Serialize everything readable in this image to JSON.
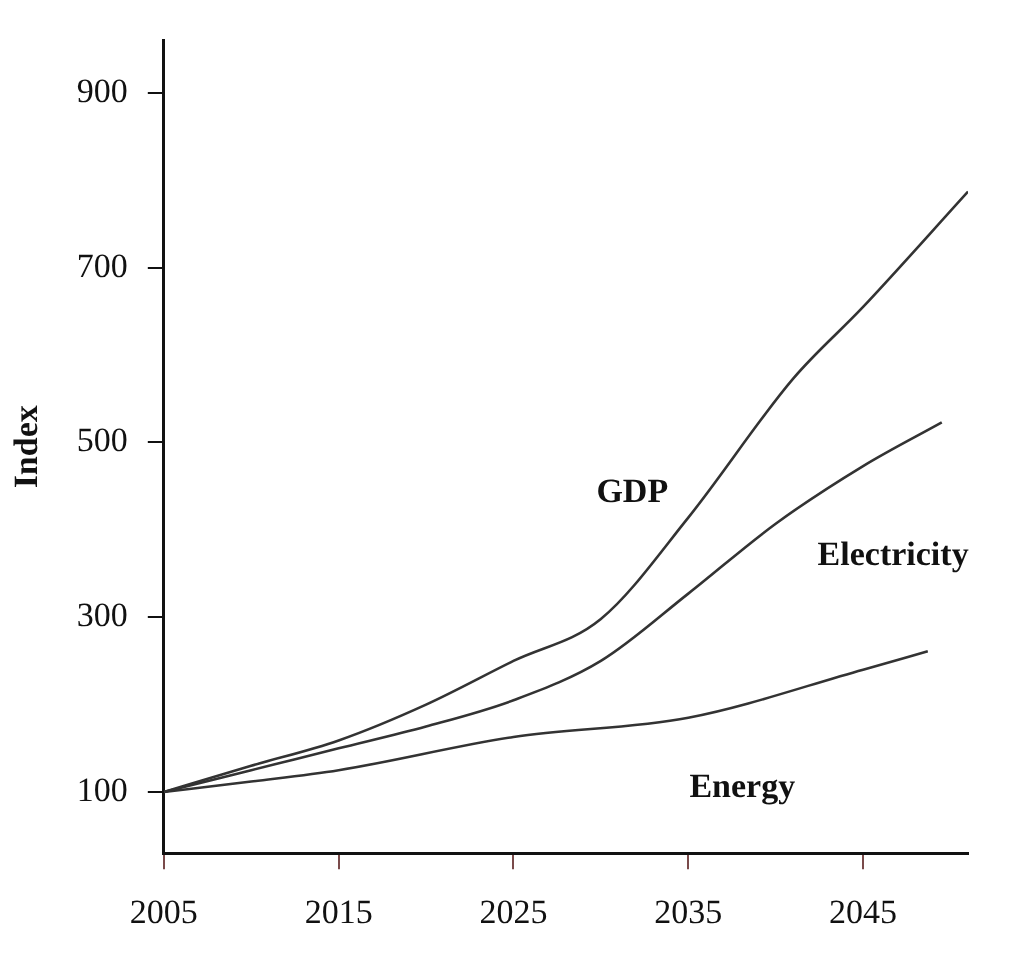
{
  "chart_data": {
    "type": "line",
    "ylabel": "Index",
    "xlim": [
      2005,
      2051
    ],
    "xticks": [
      2005,
      2015,
      2025,
      2035,
      2045
    ],
    "ylim": [
      30,
      960
    ],
    "yticks": [
      100,
      300,
      500,
      700,
      900
    ],
    "grid": false,
    "legend": false,
    "marker": "none",
    "line_style": "solid",
    "series": [
      {
        "name": "GDP",
        "color": "#333333",
        "x": [
          2005,
          2010,
          2015,
          2020,
          2025,
          2030,
          2035,
          2041,
          2045,
          2051
        ],
        "values": [
          100,
          130,
          159,
          200,
          250,
          298,
          414,
          573,
          655,
          787
        ]
      },
      {
        "name": "Electricity",
        "color": "#333333",
        "x": [
          2005,
          2010,
          2015,
          2020,
          2025,
          2030,
          2035,
          2040,
          2045,
          2049.5
        ],
        "values": [
          100,
          125,
          150,
          175,
          205,
          250,
          327,
          407,
          473,
          523
        ]
      },
      {
        "name": "Energy",
        "color": "#333333",
        "x": [
          2005,
          2010,
          2015,
          2025,
          2035,
          2045,
          2048.7
        ],
        "values": [
          100,
          112,
          125,
          163,
          185,
          240,
          261
        ]
      }
    ]
  }
}
